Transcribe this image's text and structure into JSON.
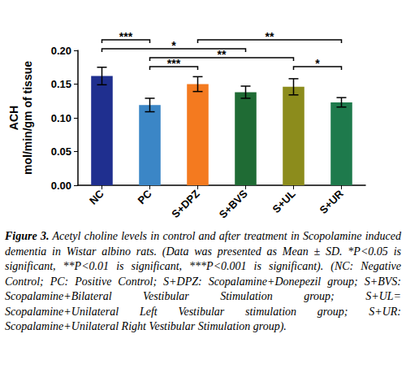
{
  "chart_data": {
    "type": "bar",
    "ylabel": "ACH\nmol/min/gm of tissue",
    "categories": [
      "NC",
      "PC",
      "S+DPZ",
      "S+BVS",
      "S+UL",
      "S+UR"
    ],
    "values": [
      0.162,
      0.119,
      0.15,
      0.138,
      0.146,
      0.123
    ],
    "errors": [
      0.013,
      0.01,
      0.011,
      0.009,
      0.012,
      0.007
    ],
    "colors": [
      "#1f2f8f",
      "#3b86c6",
      "#f47a1f",
      "#1f6b34",
      "#8c8c1c",
      "#1e7a4c"
    ],
    "ylim": [
      0,
      0.2
    ],
    "yticks": [
      {
        "value": 0,
        "label": "0.00"
      },
      {
        "value": 0.05,
        "label": "0.05"
      },
      {
        "value": 0.1,
        "label": "0.10"
      },
      {
        "value": 0.15,
        "label": "0.15"
      },
      {
        "value": 0.2,
        "label": "0.20"
      }
    ],
    "grid": false,
    "annotations": [
      {
        "from": "PC",
        "to": "S+DPZ",
        "text": "***"
      },
      {
        "from": "S+UL",
        "to": "S+UR",
        "text": "*"
      },
      {
        "from": "PC",
        "to": "S+UL",
        "text": "**"
      },
      {
        "from": "NC",
        "to": "S+BVS",
        "text": "*"
      },
      {
        "from": "NC",
        "to": "PC",
        "text": "***"
      },
      {
        "from": "S+DPZ",
        "to": "S+UR",
        "text": "**"
      }
    ],
    "caption_label": "Figure 3.",
    "caption": "Acetyl choline levels in control and after treatment in Scopolamine induced dementia in Wistar albino rats. (Data was presented as Mean ± SD. *P<0.05 is significant, **P<0.01 is significant, ***P<0.001 is significant). (NC: Negative Control; PC: Positive Control; S+DPZ: Scopalamine+Donepezil group; S+BVS: Scopalamine+Bilateral Vestibular Stimulation group; S+UL= Scopalamine+Unilateral Left Vestibular stimulation group; S+UR: Scopalamine+Unilateral Right Vestibular Stimulation group)."
  }
}
